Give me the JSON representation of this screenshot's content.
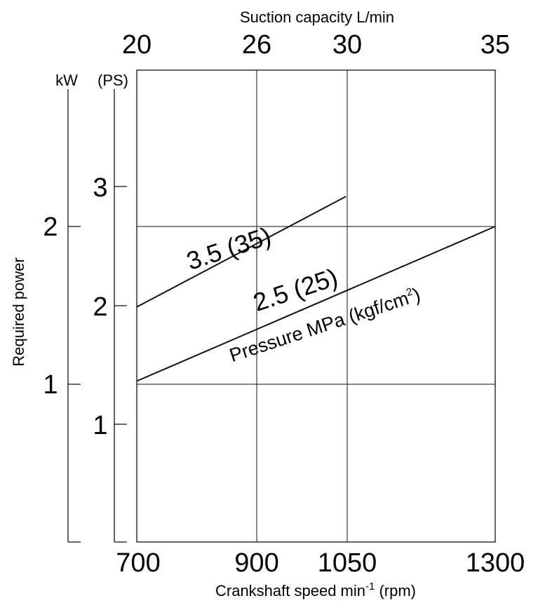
{
  "chart_data": {
    "type": "line",
    "title": "",
    "top_axis": {
      "label": "Suction capacity L/min",
      "ticks": [
        "20",
        "26",
        "30",
        "35"
      ]
    },
    "x_axis": {
      "label": "Crankshaft speed min",
      "label_sup": "-1",
      "label_suffix": " (rpm)",
      "ticks": [
        "700",
        "900",
        "1050",
        "1300"
      ],
      "range": [
        700,
        1300
      ]
    },
    "y_axis_kw": {
      "unit": "kW",
      "label": "Required power",
      "ticks": [
        "1",
        "2"
      ]
    },
    "y_axis_ps": {
      "unit": "(PS)",
      "ticks": [
        "1",
        "2",
        "3"
      ]
    },
    "pressure_caption": {
      "text": "Pressure MPa (kgf/cm",
      "sup": "2",
      "suffix": ")"
    },
    "grid": true,
    "series": [
      {
        "name": "3.5 (35)",
        "x": [
          700,
          1050
        ],
        "y_kw": [
          1.49,
          2.19
        ]
      },
      {
        "name": "2.5 (25)",
        "x": [
          700,
          1300
        ],
        "y_kw": [
          1.02,
          2.0
        ]
      }
    ]
  },
  "colors": {
    "ink": "#111111",
    "background": "#ffffff"
  }
}
